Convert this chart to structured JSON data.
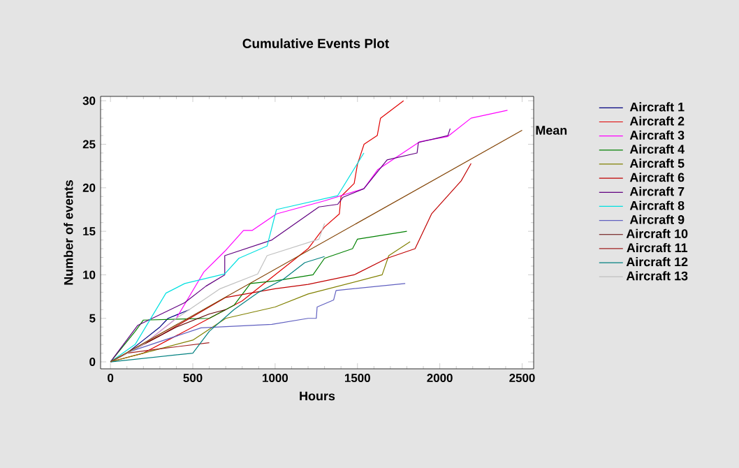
{
  "chart_data": {
    "type": "line",
    "title": "Cumulative Events Plot",
    "xlabel": "Hours",
    "ylabel": "Number of events",
    "xlim": [
      -60,
      2570
    ],
    "ylim": [
      -0.8,
      30.5
    ],
    "xticks": [
      0,
      500,
      1000,
      1500,
      2000,
      2500
    ],
    "yticks": [
      0,
      5,
      10,
      15,
      20,
      25,
      30
    ],
    "legend": "right",
    "marker": "none",
    "line_style": "solid",
    "series": [
      {
        "name": "Aircraft 1",
        "color": "#000080",
        "x": [
          0,
          100,
          200,
          300,
          350,
          480
        ],
        "values": [
          0,
          1,
          2.5,
          4,
          5,
          6
        ]
      },
      {
        "name": "Aircraft 2",
        "color": "#e00000",
        "x": [
          0,
          200,
          400,
          600,
          800,
          1000,
          1200,
          1300,
          1390,
          1400,
          1480,
          1500,
          1540,
          1620,
          1640,
          1780
        ],
        "values": [
          0,
          1,
          3,
          5,
          7,
          10,
          13,
          15.5,
          17,
          19,
          20.5,
          22.7,
          25,
          26,
          28,
          30
        ]
      },
      {
        "name": "Aircraft 3",
        "color": "#ff00ff",
        "x": [
          0,
          200,
          400,
          566,
          694,
          808,
          860,
          1008,
          1300,
          1539,
          1624,
          1879,
          2049,
          2190,
          2411
        ],
        "values": [
          0,
          2,
          5,
          10.3,
          12.7,
          15.1,
          15.1,
          17,
          18.5,
          19.9,
          22.1,
          25.3,
          25.9,
          28,
          28.9
        ]
      },
      {
        "name": "Aircraft 4",
        "color": "#008000",
        "x": [
          0,
          150,
          200,
          600,
          750,
          850,
          1000,
          1230,
          1300,
          1470,
          1500,
          1800
        ],
        "values": [
          0,
          3.5,
          4.8,
          5,
          6.5,
          9,
          9.3,
          10,
          11.9,
          13,
          14.1,
          15
        ]
      },
      {
        "name": "Aircraft 5",
        "color": "#808000",
        "x": [
          0,
          300,
          500,
          700,
          1000,
          1200,
          1650,
          1690,
          1820
        ],
        "values": [
          0,
          1.5,
          2.5,
          5,
          6.3,
          7.8,
          10,
          12.2,
          13.8
        ]
      },
      {
        "name": "Aircraft 6",
        "color": "#c00000",
        "x": [
          0,
          300,
          700,
          1000,
          1200,
          1480,
          1680,
          1850,
          1950,
          2130,
          2190
        ],
        "values": [
          0,
          3,
          7.4,
          8.4,
          8.9,
          10,
          11.9,
          13,
          17,
          20.8,
          22.8
        ]
      },
      {
        "name": "Aircraft 7",
        "color": "#600080",
        "x": [
          0,
          166,
          451,
          580,
          694,
          694,
          980,
          1266,
          1380,
          1411,
          1539,
          1680,
          1862,
          1870,
          2049,
          2063
        ],
        "values": [
          0,
          4.2,
          6.8,
          8.7,
          10,
          12.2,
          14,
          17.8,
          18.1,
          18.9,
          19.9,
          23.2,
          24,
          25.2,
          26,
          26.8
        ]
      },
      {
        "name": "Aircraft 8",
        "color": "#00e0e0",
        "x": [
          0,
          150,
          337,
          451,
          694,
          780,
          951,
          1008,
          1380,
          1539
        ],
        "values": [
          0,
          2,
          7.9,
          9,
          10.1,
          11.9,
          13.3,
          17.5,
          19.1,
          24
        ]
      },
      {
        "name": "Aircraft 9",
        "color": "#6060c0",
        "x": [
          0,
          120,
          550,
          980,
          1200,
          1250,
          1255,
          1355,
          1370,
          1790
        ],
        "values": [
          0,
          1.2,
          3.9,
          4.3,
          5,
          5,
          6.3,
          7.1,
          8.2,
          9
        ]
      },
      {
        "name": "Aircraft 10",
        "color": "#600000",
        "x": [
          0,
          200,
          400,
          600,
          700
        ],
        "values": [
          0,
          2,
          4,
          5.5,
          6
        ]
      },
      {
        "name": "Aircraft 11",
        "color": "#a02020",
        "x": [
          0,
          100,
          300,
          600
        ],
        "values": [
          0,
          1,
          1.5,
          2.2
        ]
      },
      {
        "name": "Aircraft 12",
        "color": "#008080",
        "x": [
          0,
          500,
          600,
          750,
          900,
          1050,
          1180,
          1300
        ],
        "values": [
          0,
          1,
          3.5,
          6,
          8,
          9.5,
          11.4,
          12.1
        ]
      },
      {
        "name": "Aircraft 13",
        "color": "#c0c0c0",
        "x": [
          0,
          200,
          400,
          666,
          894,
          951,
          1266,
          1300
        ],
        "values": [
          0,
          2,
          5,
          8.4,
          10.1,
          12.2,
          14.1,
          15.9
        ]
      },
      {
        "name": "Mean",
        "type": "line",
        "color": "#804000",
        "x": [
          0,
          2500
        ],
        "values": [
          0,
          26.6
        ]
      }
    ]
  }
}
